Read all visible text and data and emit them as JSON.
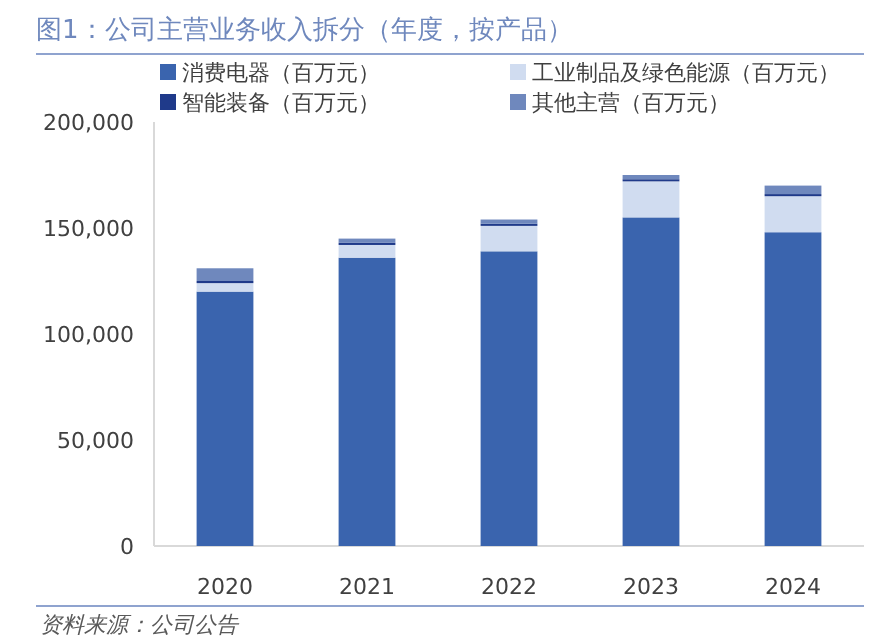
{
  "chart_data": {
    "type": "bar",
    "stacked": true,
    "title": "图1：公司主营业务收入拆分（年度，按产品）",
    "categories": [
      "2020",
      "2021",
      "2022",
      "2023",
      "2024"
    ],
    "series": [
      {
        "name": "消费电器（百万元）",
        "color": "#3a64ae",
        "values": [
          120000,
          136000,
          139000,
          155000,
          148000
        ]
      },
      {
        "name": "工业制品及绿色能源（百万元）",
        "color": "#d0dcf0",
        "values": [
          4000,
          6000,
          12000,
          17000,
          17000
        ]
      },
      {
        "name": "智能装备（百万元）",
        "color": "#1f3a8a",
        "values": [
          1000,
          1000,
          1000,
          1000,
          1000
        ]
      },
      {
        "name": "其他主营（百万元）",
        "color": "#6f88bd",
        "values": [
          6000,
          2000,
          2000,
          2000,
          4000
        ]
      }
    ],
    "ylim": [
      0,
      200000
    ],
    "yticks": [
      {
        "value": 0,
        "label": "0"
      },
      {
        "value": 50000,
        "label": "50,000"
      },
      {
        "value": 100000,
        "label": "100,000"
      },
      {
        "value": 150000,
        "label": "150,000"
      },
      {
        "value": 200000,
        "label": "200,000"
      }
    ],
    "grid": false,
    "legend": "top",
    "annotations": [
      "资料来源：公司公告"
    ]
  }
}
